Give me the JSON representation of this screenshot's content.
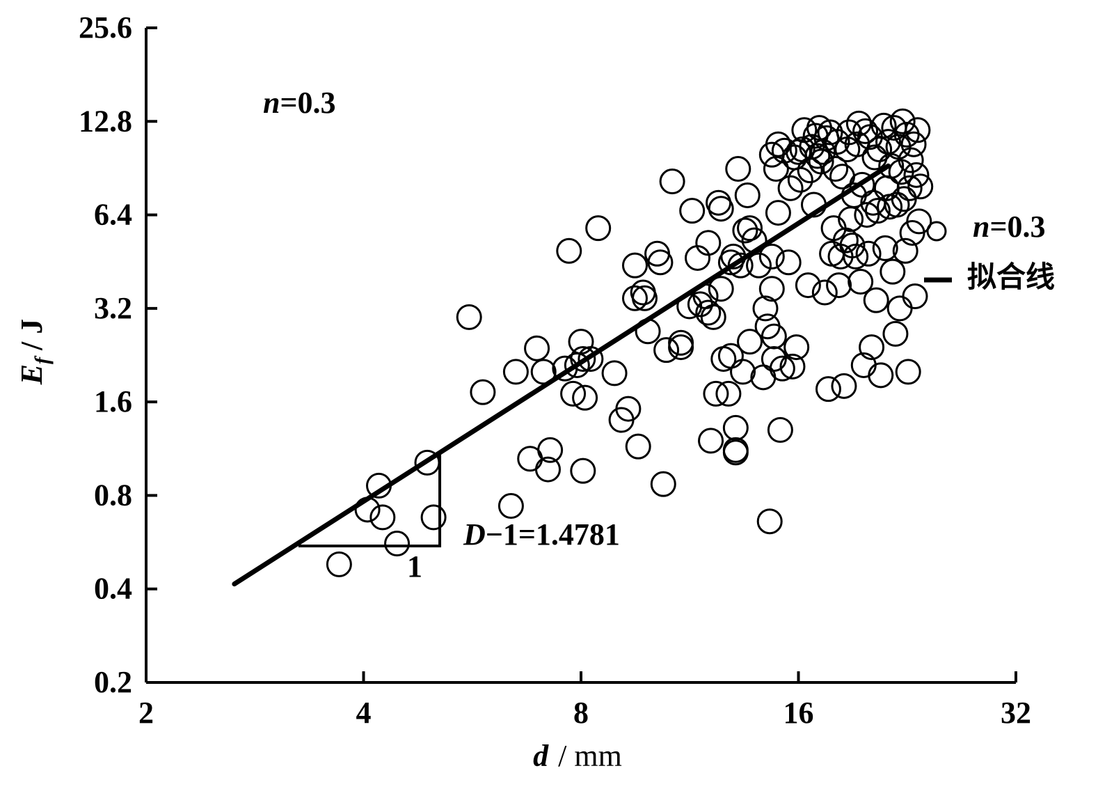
{
  "chart_data": {
    "type": "scatter",
    "x_scale": "log2",
    "y_scale": "log2",
    "xlim": [
      2,
      32
    ],
    "ylim": [
      0.2,
      25.6
    ],
    "x_ticks": [
      "2",
      "4",
      "8",
      "16",
      "32"
    ],
    "y_ticks": [
      "0.2",
      "0.4",
      "0.8",
      "1.6",
      "3.2",
      "6.4",
      "12.8",
      "25.6"
    ],
    "xlabel": {
      "var": "d",
      "unit": "/ mm"
    },
    "ylabel": {
      "var": "E",
      "sub": "f",
      "unit": "/ J"
    },
    "annotation": {
      "var": "n",
      "text": "=0.3"
    },
    "slope_label": {
      "var": "D",
      "text": "−1=1.4781",
      "run": "1"
    },
    "legend": {
      "placement": "right",
      "points": {
        "var": "n",
        "text": "=0.3"
      },
      "line": {
        "text": "拟合线"
      }
    },
    "fit_line": {
      "slope": 1.4781,
      "x": [
        2.65,
        21.3
      ],
      "y": [
        0.415,
        9.2
      ]
    },
    "slope_triangle": {
      "x": [
        3.25,
        5.1
      ],
      "y": [
        0.55,
        1.08
      ]
    },
    "series": [
      {
        "points": [
          [
            3.7,
            0.48
          ],
          [
            4.05,
            0.72
          ],
          [
            4.2,
            0.86
          ],
          [
            4.25,
            0.68
          ],
          [
            4.45,
            0.56
          ],
          [
            4.9,
            1.02
          ],
          [
            5.0,
            0.68
          ],
          [
            5.6,
            3.0
          ],
          [
            5.85,
            1.72
          ],
          [
            6.4,
            0.74
          ],
          [
            6.5,
            2.0
          ],
          [
            6.8,
            1.05
          ],
          [
            6.95,
            2.38
          ],
          [
            7.1,
            2.0
          ],
          [
            7.2,
            0.97
          ],
          [
            7.25,
            1.12
          ],
          [
            7.6,
            2.05
          ],
          [
            7.7,
            4.9
          ],
          [
            7.8,
            1.7
          ],
          [
            7.9,
            2.1
          ],
          [
            8.0,
            2.5
          ],
          [
            8.05,
            0.96
          ],
          [
            8.05,
            2.2
          ],
          [
            8.1,
            1.65
          ],
          [
            8.25,
            2.2
          ],
          [
            8.45,
            5.8
          ],
          [
            8.9,
            1.98
          ],
          [
            9.1,
            1.4
          ],
          [
            9.3,
            1.52
          ],
          [
            9.5,
            4.4
          ],
          [
            9.5,
            3.45
          ],
          [
            9.6,
            1.15
          ],
          [
            9.75,
            3.6
          ],
          [
            9.8,
            3.45
          ],
          [
            9.9,
            2.7
          ],
          [
            10.2,
            4.8
          ],
          [
            10.3,
            4.5
          ],
          [
            10.4,
            0.87
          ],
          [
            10.5,
            2.35
          ],
          [
            10.7,
            8.2
          ],
          [
            11.0,
            2.48
          ],
          [
            11.0,
            2.4
          ],
          [
            11.3,
            3.25
          ],
          [
            11.4,
            6.6
          ],
          [
            11.6,
            4.65
          ],
          [
            11.7,
            3.3
          ],
          [
            11.9,
            3.5
          ],
          [
            12.0,
            3.1
          ],
          [
            12.0,
            5.2
          ],
          [
            12.1,
            1.2
          ],
          [
            12.2,
            3.0
          ],
          [
            12.3,
            1.7
          ],
          [
            12.4,
            7.0
          ],
          [
            12.5,
            3.7
          ],
          [
            12.5,
            6.7
          ],
          [
            12.6,
            2.2
          ],
          [
            12.8,
            1.7
          ],
          [
            12.9,
            4.5
          ],
          [
            12.9,
            2.25
          ],
          [
            13.0,
            4.7
          ],
          [
            13.1,
            1.32
          ],
          [
            13.1,
            1.12
          ],
          [
            13.1,
            1.1
          ],
          [
            13.2,
            9.0
          ],
          [
            13.3,
            4.4
          ],
          [
            13.4,
            2.0
          ],
          [
            13.5,
            5.7
          ],
          [
            13.6,
            7.4
          ],
          [
            13.7,
            5.8
          ],
          [
            13.7,
            2.5
          ],
          [
            13.9,
            5.3
          ],
          [
            14.1,
            4.4
          ],
          [
            14.3,
            1.92
          ],
          [
            14.4,
            3.2
          ],
          [
            14.5,
            2.8
          ],
          [
            14.6,
            0.66
          ],
          [
            14.7,
            4.7
          ],
          [
            14.7,
            3.7
          ],
          [
            14.7,
            10.0
          ],
          [
            14.8,
            2.6
          ],
          [
            14.8,
            2.2
          ],
          [
            14.9,
            9.0
          ],
          [
            15.0,
            6.5
          ],
          [
            15.0,
            10.8
          ],
          [
            15.1,
            1.3
          ],
          [
            15.2,
            2.05
          ],
          [
            15.3,
            10.3
          ],
          [
            15.5,
            4.5
          ],
          [
            15.6,
            7.8
          ],
          [
            15.7,
            2.08
          ],
          [
            15.8,
            9.8
          ],
          [
            15.9,
            2.4
          ],
          [
            16.0,
            10.2
          ],
          [
            16.1,
            8.3
          ],
          [
            16.2,
            10.4
          ],
          [
            16.3,
            12.0
          ],
          [
            16.5,
            3.8
          ],
          [
            16.6,
            8.9
          ],
          [
            16.7,
            10.6
          ],
          [
            16.8,
            6.9
          ],
          [
            16.9,
            11.5
          ],
          [
            17.0,
            9.9
          ],
          [
            17.1,
            12.2
          ],
          [
            17.2,
            9.5
          ],
          [
            17.3,
            10.2
          ],
          [
            17.4,
            3.6
          ],
          [
            17.5,
            11.3
          ],
          [
            17.6,
            1.76
          ],
          [
            17.7,
            11.8
          ],
          [
            17.8,
            4.8
          ],
          [
            17.9,
            5.8
          ],
          [
            18.0,
            9.0
          ],
          [
            18.1,
            11.0
          ],
          [
            18.2,
            3.8
          ],
          [
            18.3,
            4.7
          ],
          [
            18.4,
            8.5
          ],
          [
            18.5,
            1.8
          ],
          [
            18.6,
            5.3
          ],
          [
            18.7,
            10.4
          ],
          [
            18.8,
            11.8
          ],
          [
            18.9,
            6.2
          ],
          [
            19.0,
            5.1
          ],
          [
            19.1,
            7.4
          ],
          [
            19.2,
            4.7
          ],
          [
            19.3,
            10.8
          ],
          [
            19.4,
            12.6
          ],
          [
            19.5,
            3.9
          ],
          [
            19.6,
            8.0
          ],
          [
            19.7,
            2.1
          ],
          [
            19.8,
            11.9
          ],
          [
            19.9,
            6.4
          ],
          [
            20.0,
            4.8
          ],
          [
            20.1,
            11.4
          ],
          [
            20.2,
            2.4
          ],
          [
            20.3,
            7.0
          ],
          [
            20.4,
            9.8
          ],
          [
            20.5,
            3.4
          ],
          [
            20.6,
            6.6
          ],
          [
            20.7,
            10.4
          ],
          [
            20.8,
            1.95
          ],
          [
            21.0,
            12.4
          ],
          [
            21.1,
            5.0
          ],
          [
            21.2,
            7.8
          ],
          [
            21.3,
            11.0
          ],
          [
            21.4,
            6.8
          ],
          [
            21.5,
            9.2
          ],
          [
            21.6,
            4.2
          ],
          [
            21.7,
            12.2
          ],
          [
            21.8,
            2.65
          ],
          [
            21.9,
            6.9
          ],
          [
            22.0,
            10.6
          ],
          [
            22.1,
            3.2
          ],
          [
            22.2,
            8.8
          ],
          [
            22.3,
            12.8
          ],
          [
            22.4,
            7.2
          ],
          [
            22.5,
            4.9
          ],
          [
            22.6,
            11.6
          ],
          [
            22.7,
            2.0
          ],
          [
            22.8,
            7.8
          ],
          [
            22.9,
            9.6
          ],
          [
            23.0,
            5.6
          ],
          [
            23.1,
            10.8
          ],
          [
            23.2,
            3.5
          ],
          [
            23.3,
            8.6
          ],
          [
            23.4,
            12.0
          ],
          [
            23.5,
            6.1
          ],
          [
            23.6,
            7.9
          ]
        ]
      }
    ]
  }
}
